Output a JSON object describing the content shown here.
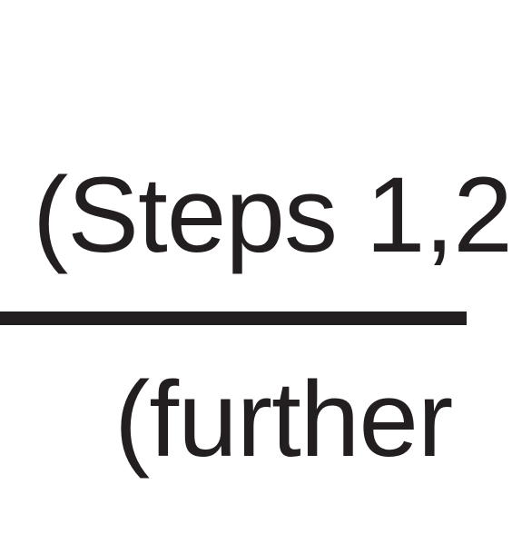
{
  "diagram": {
    "upper_text": "(Steps 1,2",
    "lower_text": "(further"
  }
}
